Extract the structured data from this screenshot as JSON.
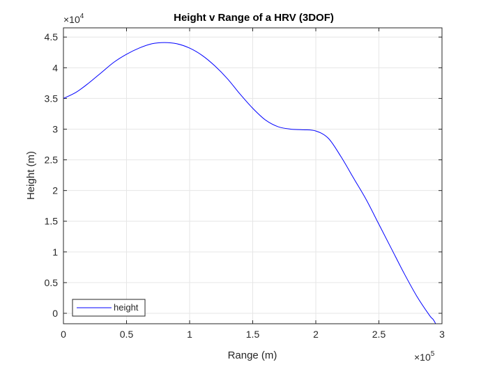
{
  "chart_data": {
    "type": "line",
    "title": "Height v Range of a HRV (3DOF)",
    "xlabel": "Range (m)",
    "ylabel": "Height (m)",
    "xlim": [
      0,
      300000
    ],
    "ylim": [
      -1700,
      46500
    ],
    "x_exponent_label": "×10",
    "x_exponent_power": "5",
    "y_exponent_label": "×10",
    "y_exponent_power": "4",
    "x_ticks": [
      {
        "value": 0,
        "label": "0"
      },
      {
        "value": 50000,
        "label": "0.5"
      },
      {
        "value": 100000,
        "label": "1"
      },
      {
        "value": 150000,
        "label": "1.5"
      },
      {
        "value": 200000,
        "label": "2"
      },
      {
        "value": 250000,
        "label": "2.5"
      },
      {
        "value": 300000,
        "label": "3"
      }
    ],
    "y_ticks": [
      {
        "value": 0,
        "label": "0"
      },
      {
        "value": 5000,
        "label": "0.5"
      },
      {
        "value": 10000,
        "label": "1"
      },
      {
        "value": 15000,
        "label": "1.5"
      },
      {
        "value": 20000,
        "label": "2"
      },
      {
        "value": 25000,
        "label": "2.5"
      },
      {
        "value": 30000,
        "label": "3"
      },
      {
        "value": 35000,
        "label": "3.5"
      },
      {
        "value": 40000,
        "label": "4"
      },
      {
        "value": 45000,
        "label": "4.5"
      }
    ],
    "grid": true,
    "legend_position": "bottom-left",
    "series": [
      {
        "name": "height",
        "color": "#0000ff",
        "x": [
          0,
          10000,
          20000,
          30000,
          40000,
          50000,
          60000,
          70000,
          80000,
          90000,
          100000,
          110000,
          120000,
          130000,
          140000,
          150000,
          160000,
          170000,
          180000,
          190000,
          200000,
          210000,
          220000,
          230000,
          240000,
          250000,
          260000,
          270000,
          280000,
          290000,
          293000,
          295000
        ],
        "y": [
          35000,
          36000,
          37500,
          39200,
          40900,
          42200,
          43200,
          43900,
          44100,
          43900,
          43200,
          42000,
          40300,
          38200,
          35700,
          33400,
          31500,
          30400,
          30000,
          29900,
          29700,
          28500,
          25500,
          22000,
          18500,
          14500,
          10500,
          6500,
          2800,
          -300,
          -1000,
          -1700
        ]
      }
    ]
  }
}
